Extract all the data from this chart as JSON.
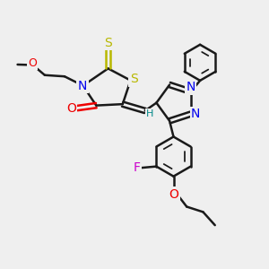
{
  "bg_color": "#efefef",
  "bond_color": "#1a1a1a",
  "bond_width": 1.8,
  "atom_colors": {
    "S": "#b8b800",
    "N": "#0000ee",
    "O": "#ee0000",
    "F": "#cc00cc",
    "H": "#008888",
    "C": "#1a1a1a"
  },
  "font_size": 9,
  "dpi": 100,
  "figsize": [
    3.0,
    3.0
  ]
}
